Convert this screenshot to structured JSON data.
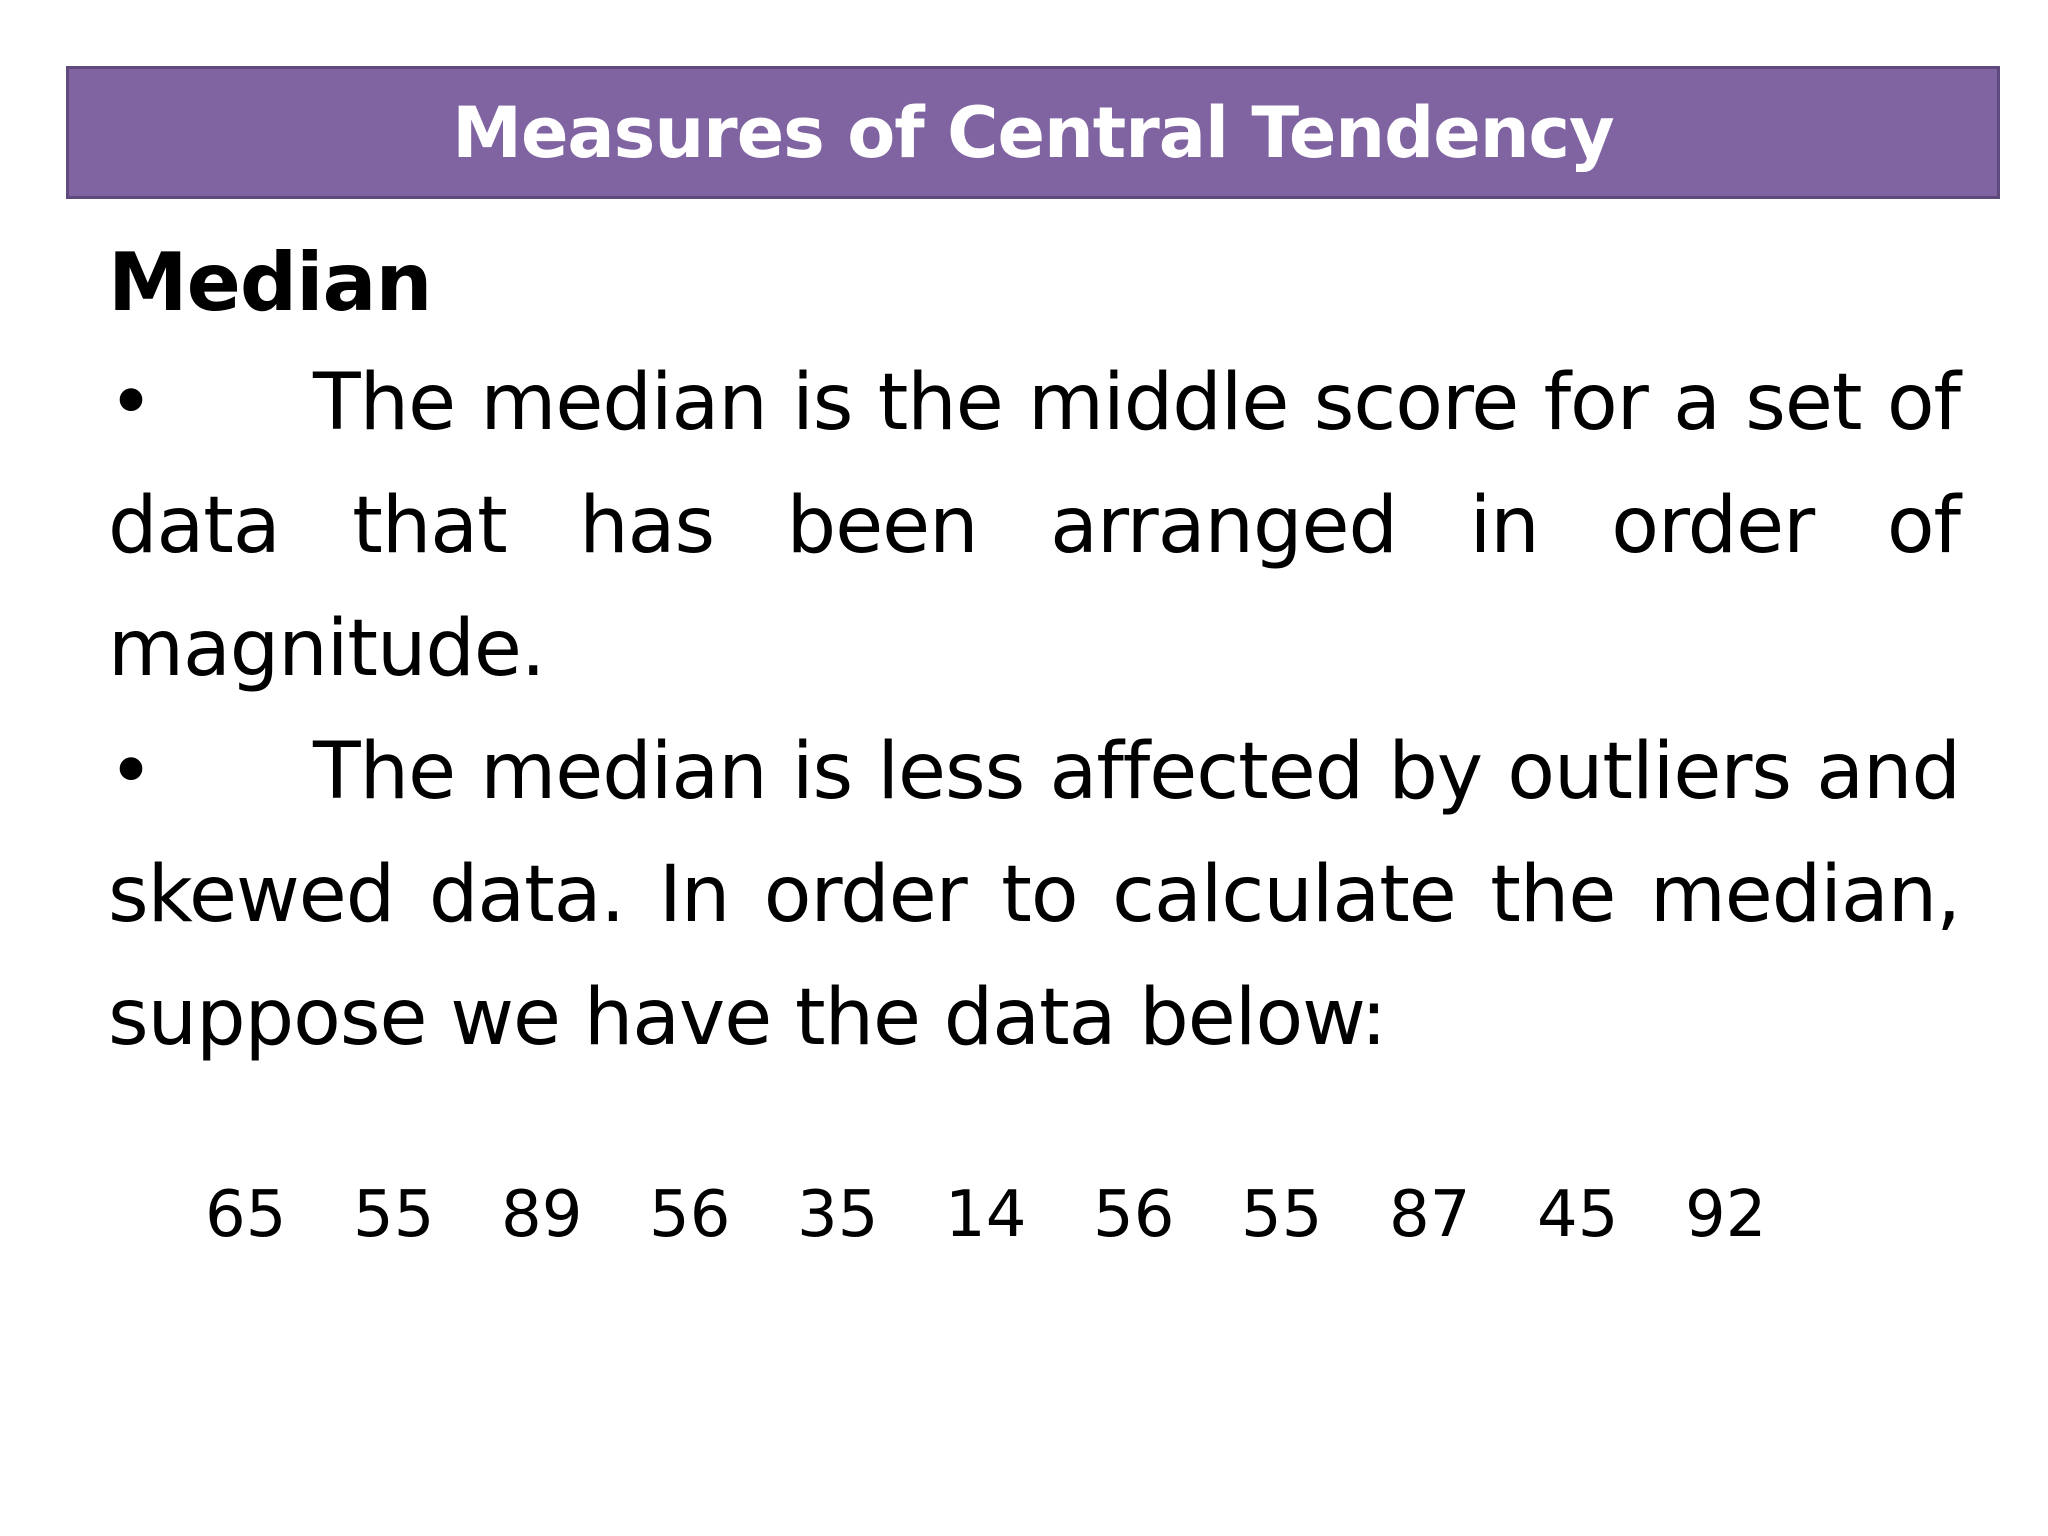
{
  "slide": {
    "title": "Measures of Central Tendency",
    "section_heading": "Median",
    "bullet_symbol": "•",
    "bullets": [
      "The median is the middle score for a set of data that has been arranged in order of magnitude.",
      "The median is less affected by outliers and skewed data. In order to calculate the median, suppose we have the data below:"
    ],
    "data_values": [
      "65",
      "55",
      "89",
      "56",
      "35",
      "14",
      "56",
      "55",
      "87",
      "45",
      "92"
    ]
  },
  "colors": {
    "title_bar_background": "#8064a2",
    "title_bar_border": "#5f4a7e",
    "title_text": "#ffffff",
    "body_text": "#000000"
  }
}
